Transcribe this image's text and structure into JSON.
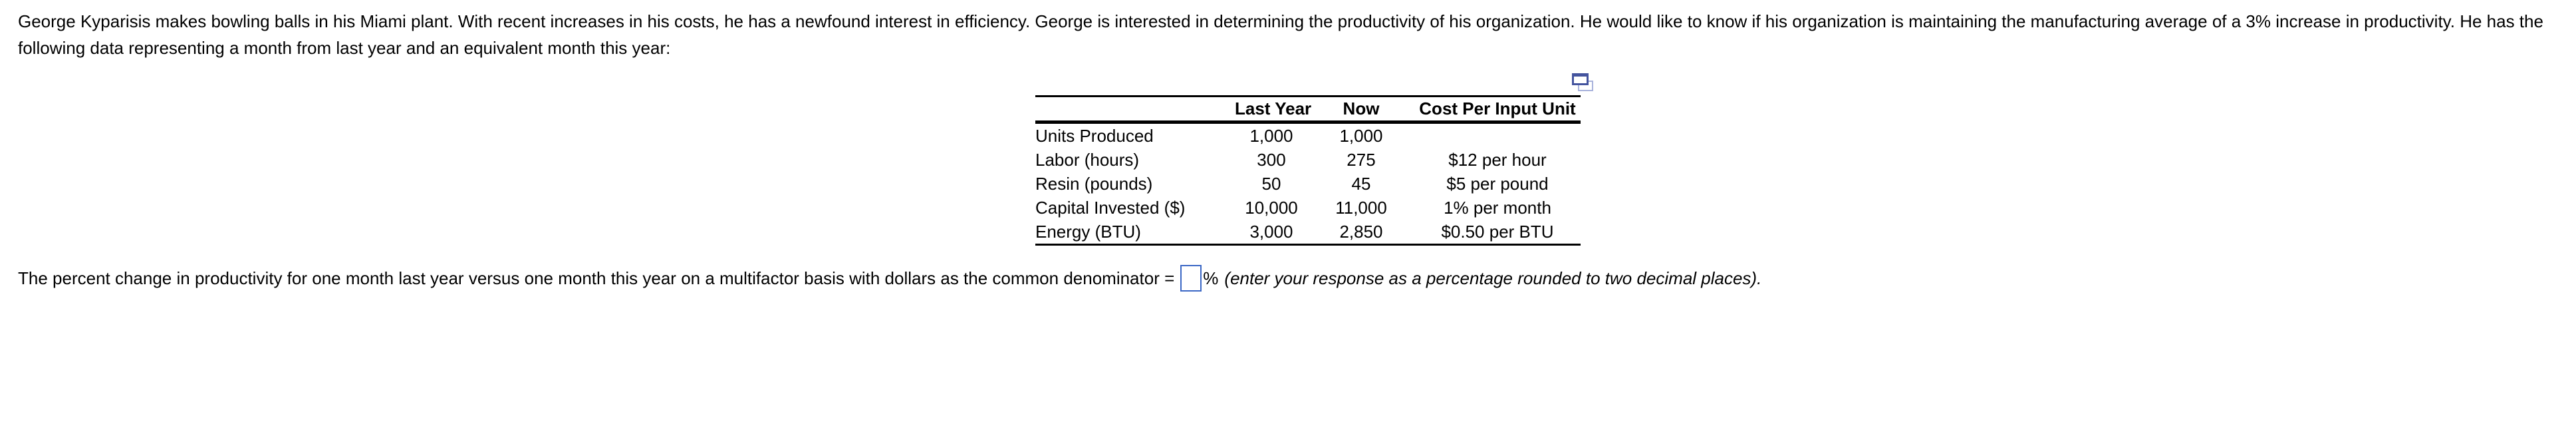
{
  "problem_statement": "George Kyparisis makes bowling balls in his Miami plant. With recent increases in his costs, he has a newfound interest in efficiency. George is interested in determining the productivity of his organization. He would like to know if his organization is maintaining the manufacturing average of a 3% increase in productivity. He has the following data representing a month from last year and an equivalent month this year:",
  "data_table": {
    "headers": {
      "row_label": "",
      "last_year": "Last Year",
      "now": "Now",
      "cost": "Cost Per Input Unit"
    },
    "rows": [
      {
        "label": "Units Produced",
        "last_year": "1,000",
        "now": "1,000",
        "cost": ""
      },
      {
        "label": "Labor (hours)",
        "last_year": "300",
        "now": "275",
        "cost": "$12 per hour"
      },
      {
        "label": "Resin (pounds)",
        "last_year": "50",
        "now": "45",
        "cost": "$5 per pound"
      },
      {
        "label": "Capital Invested ($)",
        "last_year": "10,000",
        "now": "11,000",
        "cost": "1% per month"
      },
      {
        "label": "Energy (BTU)",
        "last_year": "3,000",
        "now": "2,850",
        "cost": "$0.50 per BTU"
      }
    ],
    "icon": "popout-copy-icon"
  },
  "answer_section": {
    "prompt": "The percent change in productivity for one month last year versus one month this year on a multifactor basis with dollars as the common denominator =",
    "answer_value": "",
    "unit": "%",
    "note": "(enter your response as a percentage rounded to two decimal places)."
  },
  "colors": {
    "background": "#ffffff",
    "text": "#000000",
    "table_rule": "#000000",
    "input_border": "#3b67c5",
    "icon_front": "#44549e",
    "icon_back": "#a9b3dc"
  }
}
